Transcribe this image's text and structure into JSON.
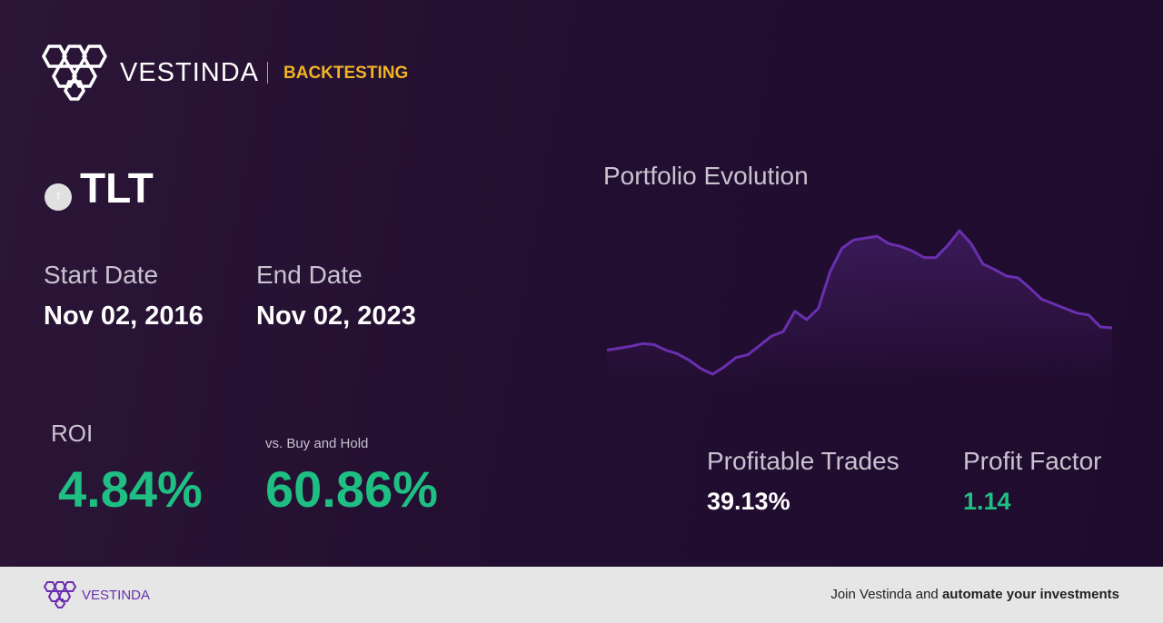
{
  "header": {
    "brand": "VESTINDA",
    "section": "BACKTESTING"
  },
  "ticker": {
    "icon_letter": "T",
    "symbol": "TLT"
  },
  "dates": {
    "start_label": "Start Date",
    "start_value": "Nov 02, 2016",
    "end_label": "End Date",
    "end_value": "Nov 02, 2023"
  },
  "roi": {
    "label": "ROI",
    "value": "4.84%"
  },
  "buy_hold": {
    "label": "vs. Buy and Hold",
    "value": "60.86%"
  },
  "portfolio_chart": {
    "title": "Portfolio Evolution",
    "color": "#6a2fb0",
    "values": [
      35,
      37,
      39,
      42,
      41,
      35,
      31,
      24,
      15,
      9,
      17,
      27,
      30,
      40,
      50,
      55,
      77,
      68,
      80,
      120,
      145,
      154,
      156,
      158,
      150,
      147,
      142,
      135,
      135,
      148,
      164,
      150,
      128,
      122,
      115,
      113,
      102,
      90,
      85,
      80,
      75,
      73,
      60,
      59
    ]
  },
  "stats": {
    "profitable_label": "Profitable Trades",
    "profitable_value": "39.13%",
    "factor_label": "Profit Factor",
    "factor_value": "1.14"
  },
  "footer": {
    "brand": "VESTINDA",
    "cta_prefix": "Join Vestinda and",
    "cta_bold": "automate your investments"
  }
}
